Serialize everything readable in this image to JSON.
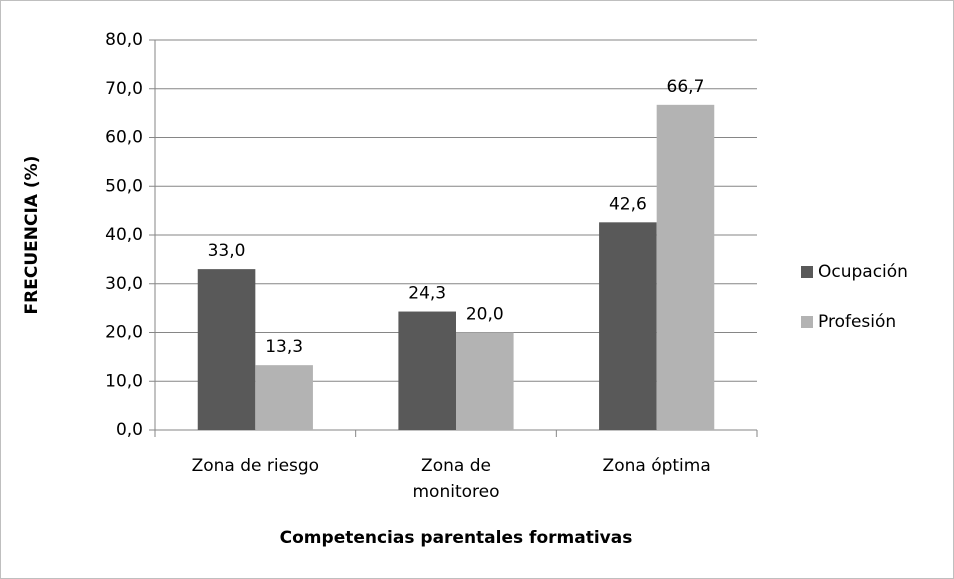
{
  "chart_data": {
    "type": "bar",
    "categories": [
      "Zona de riesgo",
      "Zona de monitoreo",
      "Zona óptima"
    ],
    "series": [
      {
        "name": "Ocupación",
        "color": "#595959",
        "values": [
          33.0,
          24.3,
          42.6
        ],
        "value_labels": [
          "33,0",
          "24,3",
          "42,6"
        ]
      },
      {
        "name": "Profesión",
        "color": "#b3b3b3",
        "values": [
          13.3,
          20.0,
          66.7
        ],
        "value_labels": [
          "13,3",
          "20,0",
          "66,7"
        ]
      }
    ],
    "xlabel": "Competencias parentales formativas",
    "ylabel": "FRECUENCIA (%)",
    "ylim": [
      0,
      80
    ],
    "yticks": [
      {
        "value": 0,
        "label": "0,0"
      },
      {
        "value": 10,
        "label": "10,0"
      },
      {
        "value": 20,
        "label": "20,0"
      },
      {
        "value": 30,
        "label": "30,0"
      },
      {
        "value": 40,
        "label": "40,0"
      },
      {
        "value": 50,
        "label": "50,0"
      },
      {
        "value": 60,
        "label": "60,0"
      },
      {
        "value": 70,
        "label": "70,0"
      },
      {
        "value": 80,
        "label": "80,0"
      }
    ],
    "grid": true,
    "legend": "right"
  }
}
